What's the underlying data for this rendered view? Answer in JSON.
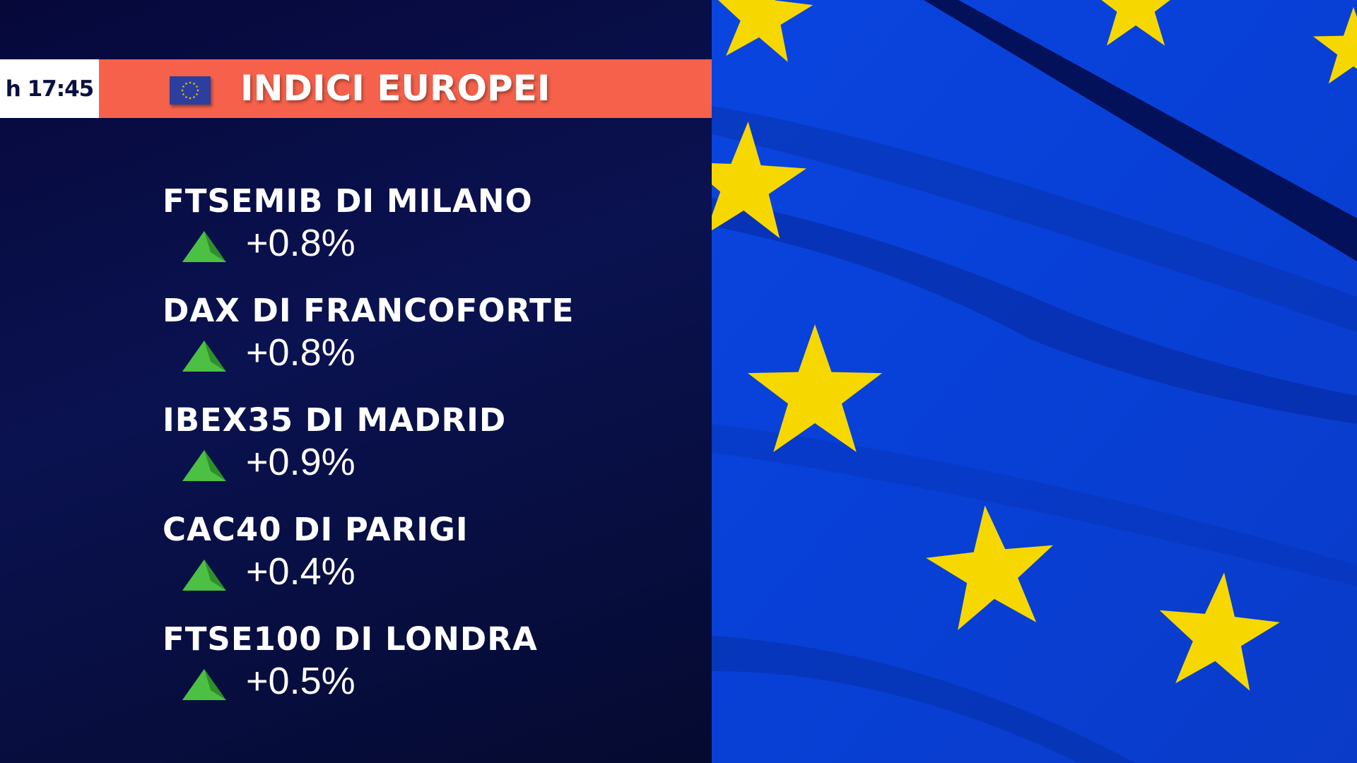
{
  "header": {
    "time": "h 17:45",
    "title": "INDICI EUROPEI",
    "icon": "eu-flag-icon"
  },
  "indices": [
    {
      "name": "FTSEMIB DI MILANO",
      "change": "+0.8%",
      "direction": "up"
    },
    {
      "name": "DAX DI FRANCOFORTE",
      "change": "+0.8%",
      "direction": "up"
    },
    {
      "name": "IBEX35 DI MADRID",
      "change": "+0.9%",
      "direction": "up"
    },
    {
      "name": "CAC40 DI PARIGI",
      "change": "+0.4%",
      "direction": "up"
    },
    {
      "name": "FTSE100 DI LONDRA",
      "change": "+0.5%",
      "direction": "up"
    }
  ],
  "colors": {
    "header_bar": "#f5614a",
    "up": "#3fa83a",
    "flag_blue": "#0a3fd8",
    "flag_star": "#f5d90a"
  }
}
